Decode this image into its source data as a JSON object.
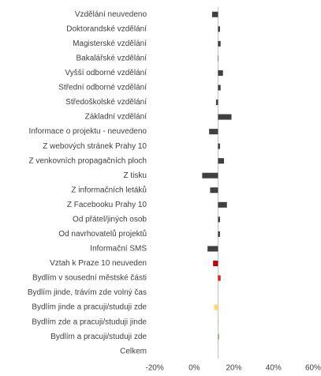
{
  "chart_data": {
    "type": "hbar",
    "categories": [
      "Vzdělání neuvedeno",
      "Doktorandské vzdělání",
      "Magisterské vzdělání",
      "Bakalářské vzdělání",
      "Vyšší odborné vzdělání",
      "Střední odborné vzdělání",
      "Středoškolské vzdělání",
      "Základní vzdělání",
      "Informace o projektu - neuvedeno",
      "Z webových stránek Prahy 10",
      "Z venkovních propagačních ploch",
      "Z tisku",
      "Z informačních letáků",
      "Z Facebooku Prahy 10",
      "Od přátel/jiných osob",
      "Od navrhovatelů projektů",
      "Informační SMS",
      "Vztah k Praze 10 neuveden",
      "Bydlím v sousední městské části",
      "Bydlím jinde, trávím zde volný čas",
      "Bydlím jinde a pracuji/studuji zde",
      "Bydlím zde a pracuji/studuji jinde",
      "Bydlím a pracuji/studuji zde",
      "Celkem"
    ],
    "values": [
      9,
      13,
      13.3,
      12.2,
      14.5,
      13.3,
      11,
      18.8,
      7.5,
      13,
      15,
      4,
      8,
      16.5,
      13,
      13,
      6.7,
      9.5,
      13.3,
      12,
      10,
      12.3,
      12.5,
      12
    ],
    "colors": [
      "#404040",
      "#404040",
      "#404040",
      "#404040",
      "#404040",
      "#404040",
      "#404040",
      "#404040",
      "#404040",
      "#404040",
      "#404040",
      "#404040",
      "#404040",
      "#404040",
      "#404040",
      "#404040",
      "#404040",
      "#c00000",
      "#e02020",
      "#404040",
      "#ffd966",
      "#a9d18e",
      "#70ad47",
      "#404040"
    ],
    "x_axis_crosses": 12,
    "xlim": [
      -28,
      64
    ],
    "xticks": [
      {
        "value": -20,
        "label": "-20%"
      },
      {
        "value": 0,
        "label": "0%"
      },
      {
        "value": 20,
        "label": "20%"
      },
      {
        "value": 40,
        "label": "40%"
      },
      {
        "value": 60,
        "label": "60%"
      }
    ],
    "grid": false
  }
}
